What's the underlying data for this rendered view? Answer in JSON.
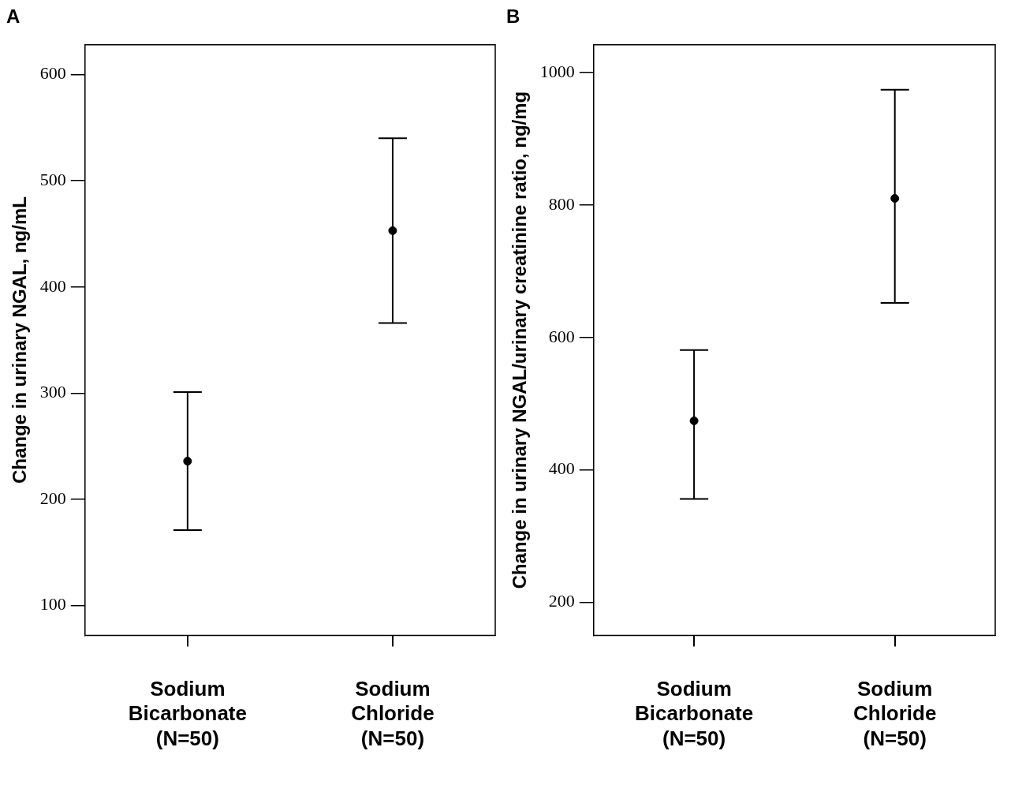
{
  "chart_data": [
    {
      "type": "scatter",
      "title": "A",
      "ylabel": "Change in urinary NGAL, ng/mL",
      "categories": [
        "Sodium Bicarbonate (N=50)",
        "Sodium Chloride (N=50)"
      ],
      "series": [
        {
          "color": "#000000",
          "values": [
            236,
            453
          ],
          "errors": [
            [
              171,
              301
            ],
            [
              366,
              540
            ]
          ]
        }
      ],
      "ylim": [
        72,
        628
      ],
      "yticks": [
        100,
        200,
        300,
        400,
        500,
        600
      ],
      "grid": false,
      "marker": "circle",
      "legend": false
    },
    {
      "type": "scatter",
      "title": "B",
      "ylabel": "Change in urinary NGAL/urinary creatinine ratio, ng/mg",
      "categories": [
        "Sodium Bicarbonate (N=50)",
        "Sodium Chloride (N=50)"
      ],
      "series": [
        {
          "color": "#000000",
          "values": [
            474,
            810
          ],
          "errors": [
            [
              356,
              581
            ],
            [
              652,
              974
            ]
          ]
        }
      ],
      "ylim": [
        150,
        1042
      ],
      "yticks": [
        200,
        400,
        600,
        800,
        1000
      ],
      "grid": false,
      "marker": "circle",
      "legend": false
    }
  ]
}
